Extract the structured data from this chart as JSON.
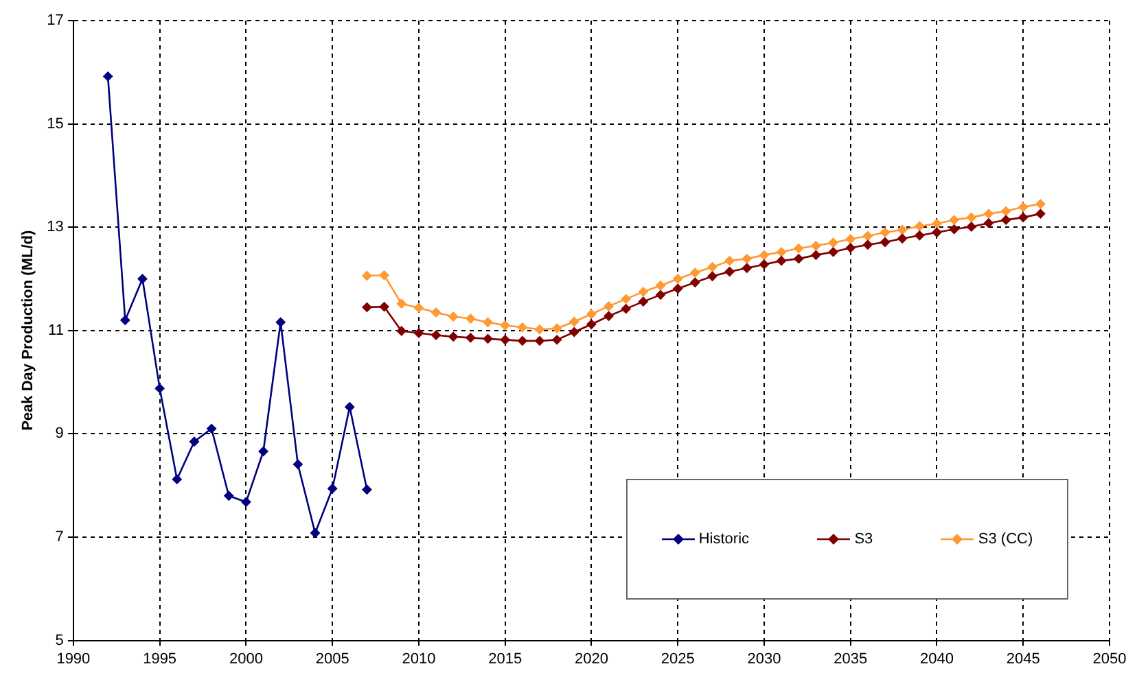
{
  "chart_data": {
    "type": "line",
    "ylabel": "Peak Day Production (ML/d)",
    "xlim": [
      1990,
      2050
    ],
    "xticks": [
      1990,
      1995,
      2000,
      2005,
      2010,
      2015,
      2020,
      2025,
      2030,
      2035,
      2040,
      2045,
      2050
    ],
    "ylim": [
      5,
      17
    ],
    "yticks": [
      5,
      7,
      9,
      11,
      13,
      15,
      17
    ],
    "grid": true,
    "legend": "bottom right",
    "marker": "diamond",
    "line_style": "solid",
    "series": [
      {
        "name": "Historic",
        "color": "#000080",
        "x": [
          1992,
          1993,
          1994,
          1995,
          1996,
          1997,
          1998,
          1999,
          2000,
          2001,
          2002,
          2003,
          2004,
          2005,
          2006,
          2007
        ],
        "values": [
          15.92,
          11.2,
          12.0,
          9.88,
          8.12,
          8.85,
          9.1,
          7.8,
          7.68,
          8.66,
          11.16,
          8.41,
          7.08,
          7.94,
          9.52,
          7.92
        ]
      },
      {
        "name": "S3",
        "color": "#800000",
        "x": [
          2007,
          2008,
          2009,
          2010,
          2011,
          2012,
          2013,
          2014,
          2015,
          2016,
          2017,
          2018,
          2019,
          2020,
          2021,
          2022,
          2023,
          2024,
          2025,
          2026,
          2027,
          2028,
          2029,
          2030,
          2031,
          2032,
          2033,
          2034,
          2035,
          2036,
          2037,
          2038,
          2039,
          2040,
          2041,
          2042,
          2043,
          2044,
          2045,
          2046
        ],
        "values": [
          11.45,
          11.46,
          10.99,
          10.95,
          10.91,
          10.88,
          10.86,
          10.84,
          10.82,
          10.8,
          10.8,
          10.82,
          10.97,
          11.12,
          11.28,
          11.42,
          11.56,
          11.69,
          11.81,
          11.93,
          12.05,
          12.14,
          12.21,
          12.28,
          12.35,
          12.39,
          12.46,
          12.52,
          12.6,
          12.66,
          12.71,
          12.78,
          12.84,
          12.9,
          12.96,
          13.01,
          13.08,
          13.14,
          13.19,
          13.26
        ]
      },
      {
        "name": "S3 (CC)",
        "color": "#ff9933",
        "x": [
          2007,
          2008,
          2009,
          2010,
          2011,
          2012,
          2013,
          2014,
          2015,
          2016,
          2017,
          2018,
          2019,
          2020,
          2021,
          2022,
          2023,
          2024,
          2025,
          2026,
          2027,
          2028,
          2029,
          2030,
          2031,
          2032,
          2033,
          2034,
          2035,
          2036,
          2037,
          2038,
          2039,
          2040,
          2041,
          2042,
          2043,
          2044,
          2045,
          2046
        ],
        "values": [
          12.06,
          12.07,
          11.52,
          11.44,
          11.35,
          11.27,
          11.23,
          11.16,
          11.1,
          11.06,
          11.02,
          11.04,
          11.17,
          11.32,
          11.47,
          11.61,
          11.75,
          11.87,
          12.0,
          12.12,
          12.23,
          12.35,
          12.39,
          12.46,
          12.52,
          12.59,
          12.64,
          12.7,
          12.77,
          12.83,
          12.9,
          12.95,
          13.02,
          13.07,
          13.14,
          13.19,
          13.26,
          13.31,
          13.39,
          13.45
        ]
      }
    ]
  }
}
